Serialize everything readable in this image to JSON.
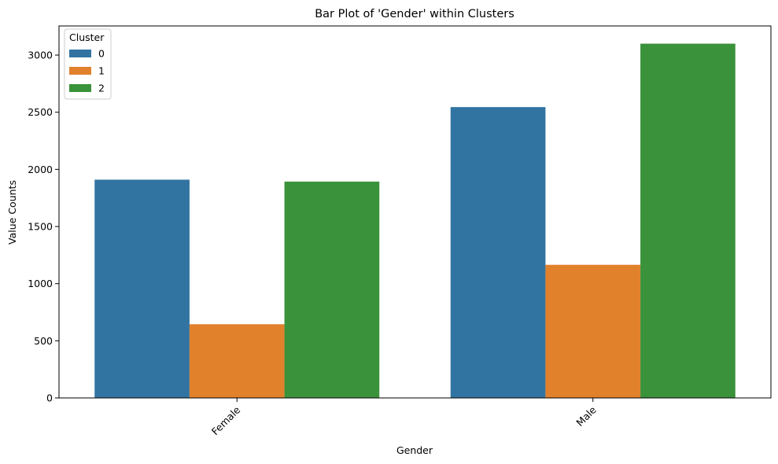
{
  "chart_data": {
    "type": "bar",
    "title": "Bar Plot of 'Gender' within Clusters",
    "xlabel": "Gender",
    "ylabel": "Value Counts",
    "categories": [
      "Female",
      "Male"
    ],
    "series": [
      {
        "name": "0",
        "color": "#3274a1",
        "values": [
          1910,
          2545
        ]
      },
      {
        "name": "1",
        "color": "#e1812c",
        "values": [
          645,
          1165
        ]
      },
      {
        "name": "2",
        "color": "#3a923a",
        "values": [
          1893,
          3100
        ]
      }
    ],
    "ylim": [
      0,
      3255
    ],
    "yticks": [
      0,
      500,
      1000,
      1500,
      2000,
      2500,
      3000
    ],
    "x_tick_rotation_deg": 45,
    "grid": false,
    "legend": {
      "title": "Cluster",
      "position": "top-left"
    }
  }
}
